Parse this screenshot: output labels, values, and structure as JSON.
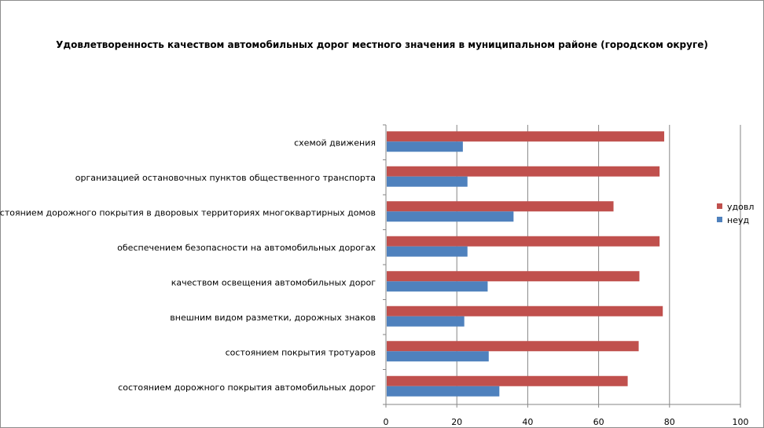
{
  "chart_data": {
    "type": "bar",
    "orientation": "horizontal",
    "title": "Удовлетворенность качеством автомобильных дорог местного значения в муниципальном районе (городском округе)",
    "xlabel": "",
    "ylabel": "",
    "xlim": [
      0,
      100
    ],
    "xticks": [
      0,
      20,
      40,
      60,
      80,
      100
    ],
    "grid": true,
    "legend_position": "right",
    "categories": [
      "схемой движения",
      "организацией остановочных пунктов общественного транспорта",
      "состоянием дорожного покрытия в дворовых территориях многоквартирных домов",
      "обеспечением безопасности на автомобильных дорогах",
      "качеством освещения автомобильных дорог",
      "внешним видом разметки, дорожных знаков",
      "состоянием покрытия тротуаров",
      "состоянием дорожного покрытия автомобильных дорог"
    ],
    "series": [
      {
        "name": "удовл",
        "color": "#c0504d",
        "values": [
          78.5,
          77.2,
          64.2,
          77.2,
          71.5,
          78.1,
          71.3,
          68.2
        ]
      },
      {
        "name": "неуд",
        "color": "#4f81bd",
        "values": [
          21.7,
          23.0,
          36.0,
          23.0,
          28.7,
          22.1,
          29.0,
          32.0
        ]
      }
    ]
  }
}
